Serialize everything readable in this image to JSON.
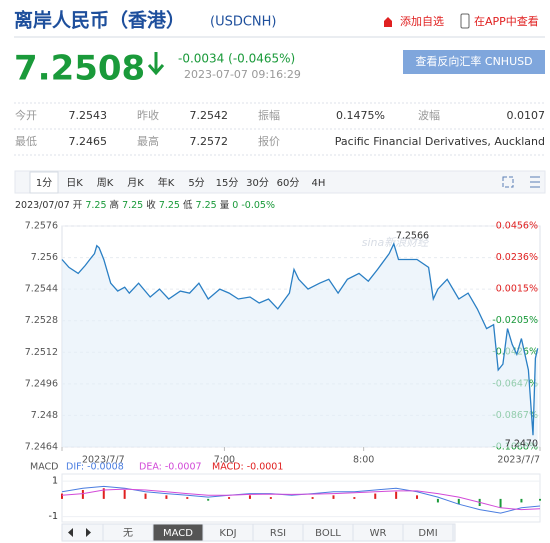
{
  "header": {
    "title": "离岸人民币（香港）",
    "code": "(USDCNH)",
    "add": "添加自选",
    "app": "在APP中查看"
  },
  "quote": {
    "price": "7.2508",
    "change": "-0.0034 (-0.0465%)",
    "time": "2023-07-07 09:16:29",
    "reverse": "查看反向汇率 CNHUSD"
  },
  "stats": {
    "rows": [
      [
        "今开",
        "7.2543",
        "昨收",
        "7.2542",
        "振幅",
        "0.1475%",
        "波幅",
        "0.0107"
      ],
      [
        "最低",
        "7.2465",
        "最高",
        "7.2572",
        "报价",
        "Pacific Financial Derivatives, Auckland"
      ]
    ]
  },
  "tabs": {
    "items": [
      "1分",
      "日K",
      "周K",
      "月K",
      "年K",
      "5分",
      "15分",
      "30分",
      "60分",
      "4H"
    ],
    "active": 0
  },
  "info": {
    "date": "2023/07/07",
    "items": [
      {
        "k": "开",
        "v": "7.25"
      },
      {
        "k": "高",
        "v": "7.25"
      },
      {
        "k": "收",
        "v": "7.25"
      },
      {
        "k": "低",
        "v": "7.25"
      },
      {
        "k": "量",
        "v": "0"
      }
    ],
    "pct": "-0.05%"
  },
  "chart_data": [
    {
      "type": "line",
      "watermark": "sina新浪财经",
      "color": "#2a7fc4",
      "fill": "#e3eef9",
      "max_label": "7.2566",
      "min_label": "7.2470",
      "x": [
        350,
        353,
        357,
        360,
        362,
        364,
        365,
        366,
        368,
        371,
        374,
        377,
        379,
        383,
        388,
        392,
        396,
        401,
        405,
        409,
        413,
        418,
        422,
        426,
        431,
        435,
        439,
        443,
        448,
        450,
        452,
        456,
        461,
        465,
        469,
        473,
        478,
        482,
        486,
        491,
        493,
        495,
        499,
        503,
        508,
        510,
        512,
        516,
        521,
        525,
        529,
        533,
        536,
        538,
        540,
        542,
        544,
        546,
        548,
        551,
        553,
        554,
        555
      ],
      "values": [
        7.2559,
        7.2555,
        7.2552,
        7.2556,
        7.2559,
        7.2562,
        7.2566,
        7.2565,
        7.2559,
        7.2547,
        7.2543,
        7.2545,
        7.2542,
        7.2547,
        7.254,
        7.2544,
        7.2539,
        7.2543,
        7.2542,
        7.2547,
        7.2539,
        7.2544,
        7.2542,
        7.2539,
        7.254,
        7.2537,
        7.2539,
        7.2534,
        7.2542,
        7.2554,
        7.2549,
        7.2544,
        7.2547,
        7.2549,
        7.2542,
        7.2549,
        7.2552,
        7.2548,
        7.2554,
        7.2562,
        7.2567,
        7.2559,
        7.2559,
        7.2559,
        7.2555,
        7.2539,
        7.2544,
        7.2549,
        7.2539,
        7.2542,
        7.2534,
        7.2524,
        7.2526,
        7.2503,
        7.2506,
        7.2524,
        7.2516,
        7.2511,
        7.2519,
        7.2503,
        7.247,
        7.2509,
        7.2514
      ],
      "xlim": [
        350,
        556
      ],
      "xticks": [
        {
          "value": 350,
          "label": "2023/7/7"
        },
        {
          "value": 420,
          "label": "7:00"
        },
        {
          "value": 480,
          "label": "8:00"
        },
        {
          "value": 556,
          "label": "2023/7/7"
        }
      ],
      "ylim": [
        7.2464,
        7.2576
      ],
      "yticks": [
        7.2464,
        7.248,
        7.2496,
        7.2512,
        7.2528,
        7.2544,
        7.256,
        7.2576
      ],
      "y2lim": [
        -0.1088,
        0.0456
      ],
      "y2ticks": [
        {
          "value": 0.0456,
          "label": "0.0456%"
        },
        {
          "value": 0.0236,
          "label": "0.0236%"
        },
        {
          "value": 0.0015,
          "label": "0.0015%"
        },
        {
          "value": -0.0205,
          "label": "-0.0205%"
        },
        {
          "value": -0.0426,
          "label": "-0.0426%"
        },
        {
          "value": -0.0647,
          "label": "-0.0647%"
        },
        {
          "value": -0.0867,
          "label": "-0.0867%"
        },
        {
          "value": -0.1088,
          "label": "-0.1088%"
        }
      ],
      "grid": true
    },
    {
      "type": "macd",
      "title": "MACD",
      "down_color": "#1a9a3a",
      "x": [
        350,
        359,
        368,
        377,
        386,
        395,
        404,
        413,
        422,
        431,
        440,
        449,
        458,
        467,
        476,
        485,
        494,
        503,
        512,
        521,
        530,
        539,
        548,
        556
      ],
      "series": [
        {
          "name": "DIF: -0.0008",
          "color": "#4a7de0",
          "values": [
            0.4,
            0.6,
            0.7,
            0.6,
            0.4,
            0.3,
            0.2,
            0.1,
            0.2,
            0.3,
            0.3,
            0.2,
            0.3,
            0.4,
            0.4,
            0.5,
            0.6,
            0.4,
            0.1,
            -0.3,
            -0.6,
            -0.8,
            -0.5,
            -0.4
          ]
        },
        {
          "name": "DEA: -0.0007",
          "color": "#d24ad8",
          "values": [
            0.2,
            0.3,
            0.5,
            0.55,
            0.5,
            0.4,
            0.3,
            0.2,
            0.2,
            0.25,
            0.27,
            0.25,
            0.27,
            0.3,
            0.35,
            0.4,
            0.45,
            0.45,
            0.3,
            0.1,
            -0.2,
            -0.5,
            -0.6,
            -0.55
          ]
        },
        {
          "name": "MACD: -0.0001",
          "color": "#e02020",
          "values": [
            0.3,
            0.5,
            0.6,
            0.5,
            0.3,
            0.2,
            0.1,
            -0.1,
            0.1,
            0.2,
            0.1,
            0,
            0.1,
            0.2,
            0.1,
            0.3,
            0.4,
            0.2,
            -0.2,
            -0.3,
            -0.4,
            -0.5,
            -0.2,
            -0.1
          ]
        }
      ],
      "xlim": [
        350,
        556
      ],
      "ylim": [
        -1.3,
        1.4
      ],
      "yticks": [
        1,
        -1
      ]
    }
  ],
  "toolbar": {
    "items": [
      "无",
      "MACD",
      "KDJ",
      "RSI",
      "BOLL",
      "WR",
      "DMI"
    ],
    "active": 1
  }
}
